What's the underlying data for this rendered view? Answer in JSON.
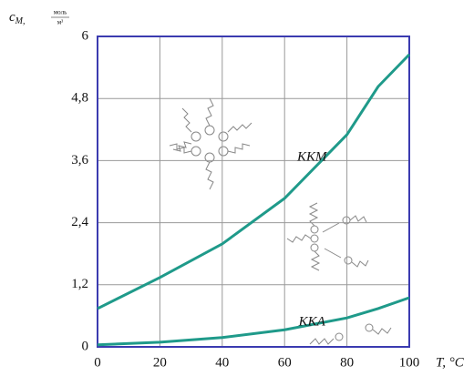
{
  "chart_data": {
    "type": "line",
    "y_label": {
      "symbol": "c",
      "subscript": "M,",
      "unit_top": "моль",
      "unit_bottom": "м³"
    },
    "x_label": "T, °C",
    "x": [
      0,
      20,
      40,
      60,
      80,
      90,
      100
    ],
    "series": [
      {
        "name": "ККМ",
        "color": "#1f9a8a",
        "values": [
          0.74,
          1.34,
          1.99,
          2.87,
          4.1,
          5.03,
          5.65
        ]
      },
      {
        "name": "ККА",
        "color": "#1f9a8a",
        "values": [
          0.04,
          0.09,
          0.18,
          0.33,
          0.56,
          0.74,
          0.95
        ]
      }
    ],
    "xlim": [
      0,
      100
    ],
    "xticks": [
      0,
      20,
      40,
      60,
      80,
      100
    ],
    "ylim": [
      0,
      6
    ],
    "yticks": [
      0,
      {
        "value": 1.2,
        "label": "1,2"
      },
      {
        "value": 2.4,
        "label": "2,4"
      },
      {
        "value": 3.6,
        "label": "3,6"
      },
      {
        "value": 4.8,
        "label": "4,8"
      },
      6
    ],
    "grid": true
  }
}
